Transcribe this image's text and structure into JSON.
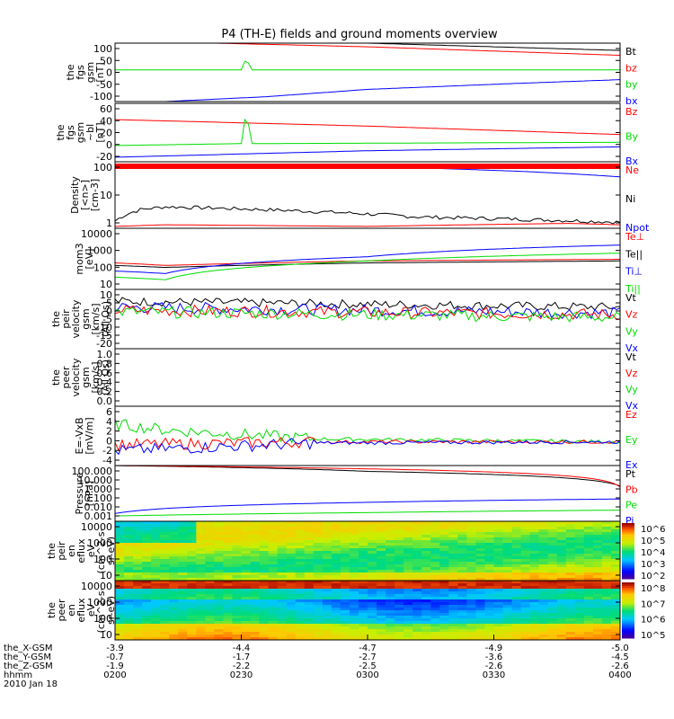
{
  "title": "P4 (TH-E) fields and ground moments overview",
  "colors": {
    "black": "#000000",
    "red": "#ff0000",
    "green": "#00dd00",
    "blue": "#0000ff"
  },
  "chart_data": [
    {
      "type": "line",
      "ylabel": [
        "the",
        "fgs",
        "gsm",
        "[nT]"
      ],
      "yticks": [
        "100",
        "50",
        "0",
        "-50",
        "-100"
      ],
      "ylim": [
        -130,
        110
      ],
      "legend": [
        {
          "name": "Bt",
          "color": "black"
        },
        {
          "name": "bz",
          "color": "red"
        },
        {
          "name": "by",
          "color": "green"
        },
        {
          "name": "bx",
          "color": "blue"
        }
      ],
      "series": [
        {
          "name": "Bt",
          "color": "black",
          "x": [
            0,
            0.5,
            1
          ],
          "y": [
            140,
            110,
            80
          ]
        },
        {
          "name": "bz",
          "color": "red",
          "x": [
            0,
            0.5,
            1
          ],
          "y": [
            120,
            95,
            60
          ]
        },
        {
          "name": "by",
          "color": "green",
          "x": [
            0,
            0.25,
            0.26,
            0.27,
            1
          ],
          "y": [
            0,
            0,
            50,
            0,
            0
          ]
        },
        {
          "name": "bx",
          "color": "blue",
          "x": [
            0,
            0.3,
            0.5,
            0.8,
            1
          ],
          "y": [
            -140,
            -110,
            -80,
            -55,
            -40
          ]
        }
      ]
    },
    {
      "type": "line",
      "ylabel": [
        "the",
        "fgs",
        "gsm",
        "~bl",
        "[nT]"
      ],
      "yticks": [
        "60",
        "40",
        "20",
        "0",
        "-20"
      ],
      "ylim": [
        -25,
        65
      ],
      "legend": [
        {
          "name": "Bz",
          "color": "red"
        },
        {
          "name": "By",
          "color": "green"
        },
        {
          "name": "Bx",
          "color": "blue"
        }
      ],
      "series": [
        {
          "name": "Bz",
          "color": "red",
          "x": [
            0,
            0.5,
            1
          ],
          "y": [
            40,
            30,
            17
          ]
        },
        {
          "name": "By",
          "color": "green",
          "x": [
            0,
            0.25,
            0.26,
            0.27,
            1
          ],
          "y": [
            0,
            3,
            55,
            3,
            5
          ]
        },
        {
          "name": "Bx",
          "color": "blue",
          "x": [
            0,
            0.5,
            1
          ],
          "y": [
            -18,
            -8,
            -2
          ]
        }
      ]
    },
    {
      "type": "line",
      "ylabel": [
        "Density",
        "[<n>]",
        "[cm-3]"
      ],
      "yticks": [
        "100",
        "10",
        "1"
      ],
      "log": true,
      "ylim": [
        0.5,
        300
      ],
      "legend": [
        {
          "name": "Ne",
          "color": "red"
        },
        {
          "name": "Ni",
          "color": "black"
        },
        {
          "name": "Npot",
          "color": "blue"
        }
      ],
      "series": [
        {
          "name": "Ni",
          "color": "black",
          "x": [
            0,
            0.05,
            0.1,
            0.3,
            0.6,
            1
          ],
          "y": [
            1,
            3,
            4,
            3,
            1.5,
            0.9
          ]
        },
        {
          "name": "Ne",
          "color": "red",
          "x": [
            0,
            0.1,
            0.5,
            0.9,
            1
          ],
          "y": [
            0.6,
            0.7,
            0.6,
            0.8,
            0.7
          ]
        },
        {
          "name": "Npot",
          "color": "blue",
          "x": [
            0,
            0.5,
            0.8,
            1
          ],
          "y": [
            200,
            190,
            120,
            70
          ]
        }
      ]
    },
    {
      "type": "line",
      "ylabel": [
        "mom3",
        "[eV]"
      ],
      "yticks": [
        "10000",
        "1000",
        "100",
        "10"
      ],
      "log": true,
      "ylim": [
        10,
        10000
      ],
      "legend": [
        {
          "name": "Te⊥",
          "color": "red"
        },
        {
          "name": "Te||",
          "color": "black"
        },
        {
          "name": "Ti⊥",
          "color": "blue"
        },
        {
          "name": "Ti||",
          "color": "green"
        }
      ],
      "series": [
        {
          "name": "Te||",
          "color": "black",
          "x": [
            0,
            0.1,
            0.5,
            1
          ],
          "y": [
            150,
            120,
            200,
            250
          ]
        },
        {
          "name": "Te⊥",
          "color": "red",
          "x": [
            0,
            0.1,
            0.5,
            1
          ],
          "y": [
            200,
            150,
            250,
            300
          ]
        },
        {
          "name": "Ti⊥",
          "color": "blue",
          "x": [
            0,
            0.1,
            0.5,
            1
          ],
          "y": [
            80,
            60,
            400,
            1500
          ]
        },
        {
          "name": "Ti||",
          "color": "green",
          "x": [
            0,
            0.1,
            0.5,
            1
          ],
          "y": [
            40,
            30,
            250,
            600
          ]
        }
      ]
    },
    {
      "type": "line",
      "ylabel": [
        "the",
        "peir",
        "velocity",
        "gsm",
        "[km/s]",
        "(All Qs)"
      ],
      "yticks": [
        "10",
        "5",
        "0",
        "-5",
        "-10",
        "-15",
        "-20"
      ],
      "ylim": [
        -22,
        18
      ],
      "legend": [
        {
          "name": "Vt",
          "color": "black"
        },
        {
          "name": "Vz",
          "color": "red"
        },
        {
          "name": "Vy",
          "color": "green"
        },
        {
          "name": "Vx",
          "color": "blue"
        }
      ],
      "series": [
        {
          "name": "Vt",
          "color": "black",
          "x": [
            0,
            1
          ],
          "y": [
            10,
            6
          ]
        },
        {
          "name": "Vx",
          "color": "blue",
          "x": [
            0,
            1
          ],
          "y": [
            6,
            2
          ]
        },
        {
          "name": "Vz",
          "color": "red",
          "x": [
            0,
            1
          ],
          "y": [
            4,
            1
          ]
        },
        {
          "name": "Vy",
          "color": "green",
          "x": [
            0,
            1
          ],
          "y": [
            3,
            -1
          ]
        }
      ]
    },
    {
      "type": "line",
      "ylabel": [
        "the",
        "peer",
        "velocity",
        "gsm",
        "[km/s]",
        "(All Qs)"
      ],
      "yticks": [
        "1.0",
        "0.8",
        "0.6",
        "0.4",
        "0.2",
        "0.0"
      ],
      "ylim": [
        0,
        1
      ],
      "legend": [
        {
          "name": "Vt",
          "color": "black"
        },
        {
          "name": "Vz",
          "color": "red"
        },
        {
          "name": "Vy",
          "color": "green"
        },
        {
          "name": "Vx",
          "color": "blue"
        }
      ],
      "series": []
    },
    {
      "type": "line",
      "ylabel": [
        "E=-VxB",
        "[mV/m]"
      ],
      "yticks": [
        "6",
        "4",
        "2",
        "0",
        "-2",
        "-4"
      ],
      "ylim": [
        -4,
        6
      ],
      "legend": [
        {
          "name": "Ez",
          "color": "red"
        },
        {
          "name": "Ey",
          "color": "green"
        },
        {
          "name": "Ex",
          "color": "blue"
        }
      ],
      "series": [
        {
          "name": "Ey",
          "color": "green",
          "x": [
            0,
            0.1,
            0.4,
            1
          ],
          "y": [
            3,
            2,
            0.5,
            0
          ]
        },
        {
          "name": "Ez",
          "color": "red",
          "x": [
            0,
            0.4,
            1
          ],
          "y": [
            -0.5,
            0,
            0
          ]
        },
        {
          "name": "Ex",
          "color": "blue",
          "x": [
            0,
            0.4,
            1
          ],
          "y": [
            -1.5,
            -0.2,
            0
          ]
        }
      ]
    },
    {
      "type": "line",
      "ylabel": [
        "Pressure",
        "[nPa]"
      ],
      "yticks": [
        "100.000",
        "10.000",
        "1.000",
        "0.100",
        "0.010",
        "0.001"
      ],
      "log": true,
      "ylim": [
        0.001,
        100
      ],
      "legend": [
        {
          "name": "Pt",
          "color": "black"
        },
        {
          "name": "Pb",
          "color": "red"
        },
        {
          "name": "Pe",
          "color": "green"
        },
        {
          "name": "Pi",
          "color": "blue"
        }
      ],
      "series": [
        {
          "name": "Pt",
          "color": "black",
          "x": [
            0,
            0.5,
            1
          ],
          "y": [
            100,
            30,
            1.5
          ]
        },
        {
          "name": "Pi",
          "color": "blue",
          "x": [
            0,
            0.5,
            1
          ],
          "y": [
            0.005,
            0.05,
            0.1
          ]
        },
        {
          "name": "Pe",
          "color": "green",
          "x": [
            0,
            0.5,
            1
          ],
          "y": [
            0.003,
            0.006,
            0.01
          ]
        },
        {
          "name": "Pb",
          "color": "red",
          "x": [
            0,
            1
          ],
          "y": [
            100,
            1.2
          ]
        }
      ]
    },
    {
      "type": "heatmap",
      "ylabel": [
        "the",
        "peir",
        "en",
        "eflux",
        "eV",
        "(cm^2-s-",
        "sr-eV)"
      ],
      "yticks": [
        "10000",
        "1000",
        "100",
        "10"
      ],
      "colorbar_ticks": [
        "10^6",
        "10^5",
        "10^4",
        "10^3",
        "10^2"
      ]
    },
    {
      "type": "heatmap",
      "ylabel": [
        "the",
        "peer",
        "en",
        "eflux",
        "eV",
        "(cm^2-s-",
        "sr-eV)"
      ],
      "yticks": [
        "10000",
        "1000",
        "100",
        "10"
      ],
      "colorbar_ticks": [
        "10^8",
        "10^7",
        "10^6",
        "10^5"
      ]
    }
  ],
  "x_axis": {
    "row_labels": [
      "the_X-GSM",
      "the_Y-GSM",
      "the_Z-GSM",
      "hhmm",
      "2010 Jan 18"
    ],
    "columns": [
      [
        "-3.9",
        "-0.7",
        "-1.9",
        "0200"
      ],
      [
        "-4.4",
        "-1.7",
        "-2.2",
        "0230"
      ],
      [
        "-4.7",
        "-2.7",
        "-2.5",
        "0300"
      ],
      [
        "-4.9",
        "-3.6",
        "-2.6",
        "0330"
      ],
      [
        "-5.0",
        "-4.5",
        "-2.6",
        "0400"
      ]
    ]
  }
}
